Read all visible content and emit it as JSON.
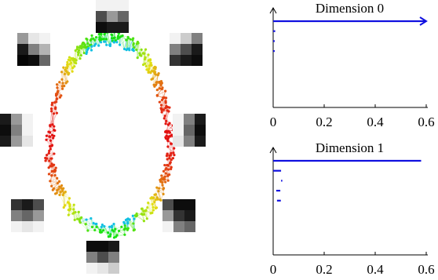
{
  "chart_data": [
    {
      "type": "barcode",
      "title": "Dimension 0",
      "color": "#1010e0",
      "births": [
        0,
        0,
        0,
        0
      ],
      "deaths": [
        null,
        0.008,
        0.006,
        0.006
      ],
      "xlim": [
        0,
        0.6
      ],
      "xticks": [
        0,
        0.2,
        0.4,
        0.6
      ]
    },
    {
      "type": "barcode",
      "title": "Dimension 1",
      "color": "#1010e0",
      "births": [
        0,
        0,
        0.031,
        0.012,
        0.015
      ],
      "deaths": [
        0.58,
        0.031,
        0.036,
        0.028,
        0.03
      ],
      "xlim": [
        0,
        0.6
      ],
      "xticks": [
        0,
        0.2,
        0.4,
        0.6
      ]
    }
  ]
}
